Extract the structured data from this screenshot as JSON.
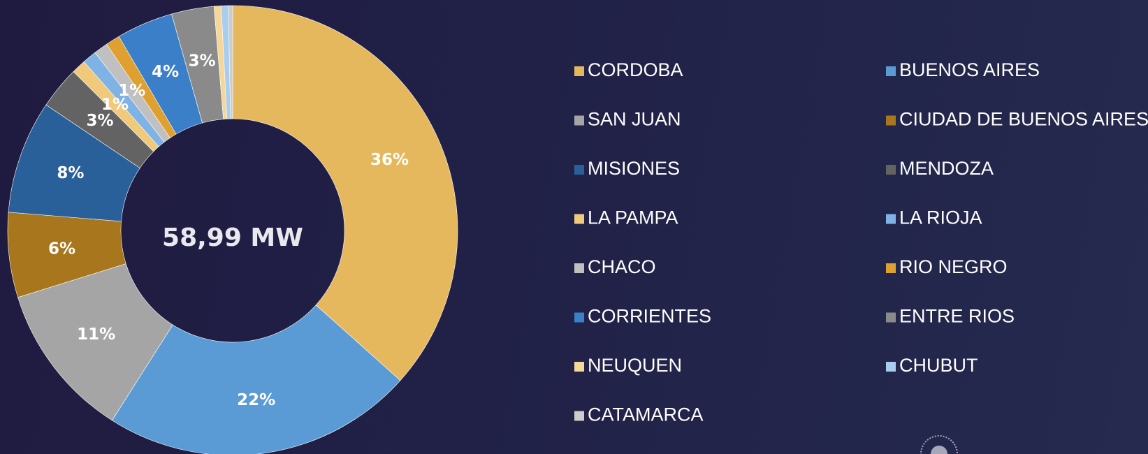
{
  "chart_data": {
    "type": "donut",
    "center_label": "58,99 MW",
    "categories": [
      "CORDOBA",
      "BUENOS AIRES",
      "SAN JUAN",
      "CIUDAD DE BUENOS AIRES",
      "MISIONES",
      "MENDOZA",
      "LA PAMPA",
      "LA RIOJA",
      "CHACO",
      "RIO NEGRO",
      "CORRIENTES",
      "ENTRE RIOS",
      "NEUQUEN",
      "CHUBUT",
      "CATAMARCA"
    ],
    "values": [
      36,
      22,
      11,
      6,
      8,
      3,
      1,
      1,
      1,
      1,
      4,
      3,
      0.5,
      0.5,
      0.3
    ],
    "value_labels": [
      "36%",
      "22%",
      "11%",
      "6%",
      "8%",
      "3%",
      "1%",
      null,
      "1%",
      null,
      "4%",
      "3%",
      null,
      null,
      null
    ],
    "colors": [
      "#e6b85e",
      "#5b9bd5",
      "#a5a5a5",
      "#a8761c",
      "#2a6099",
      "#636363",
      "#f0c97a",
      "#7fb2e5",
      "#c0c0c0",
      "#e0a030",
      "#3a7fc8",
      "#8a8a8a",
      "#f5d79a",
      "#a9cdee",
      "#cccccc"
    ],
    "legend": "right"
  }
}
